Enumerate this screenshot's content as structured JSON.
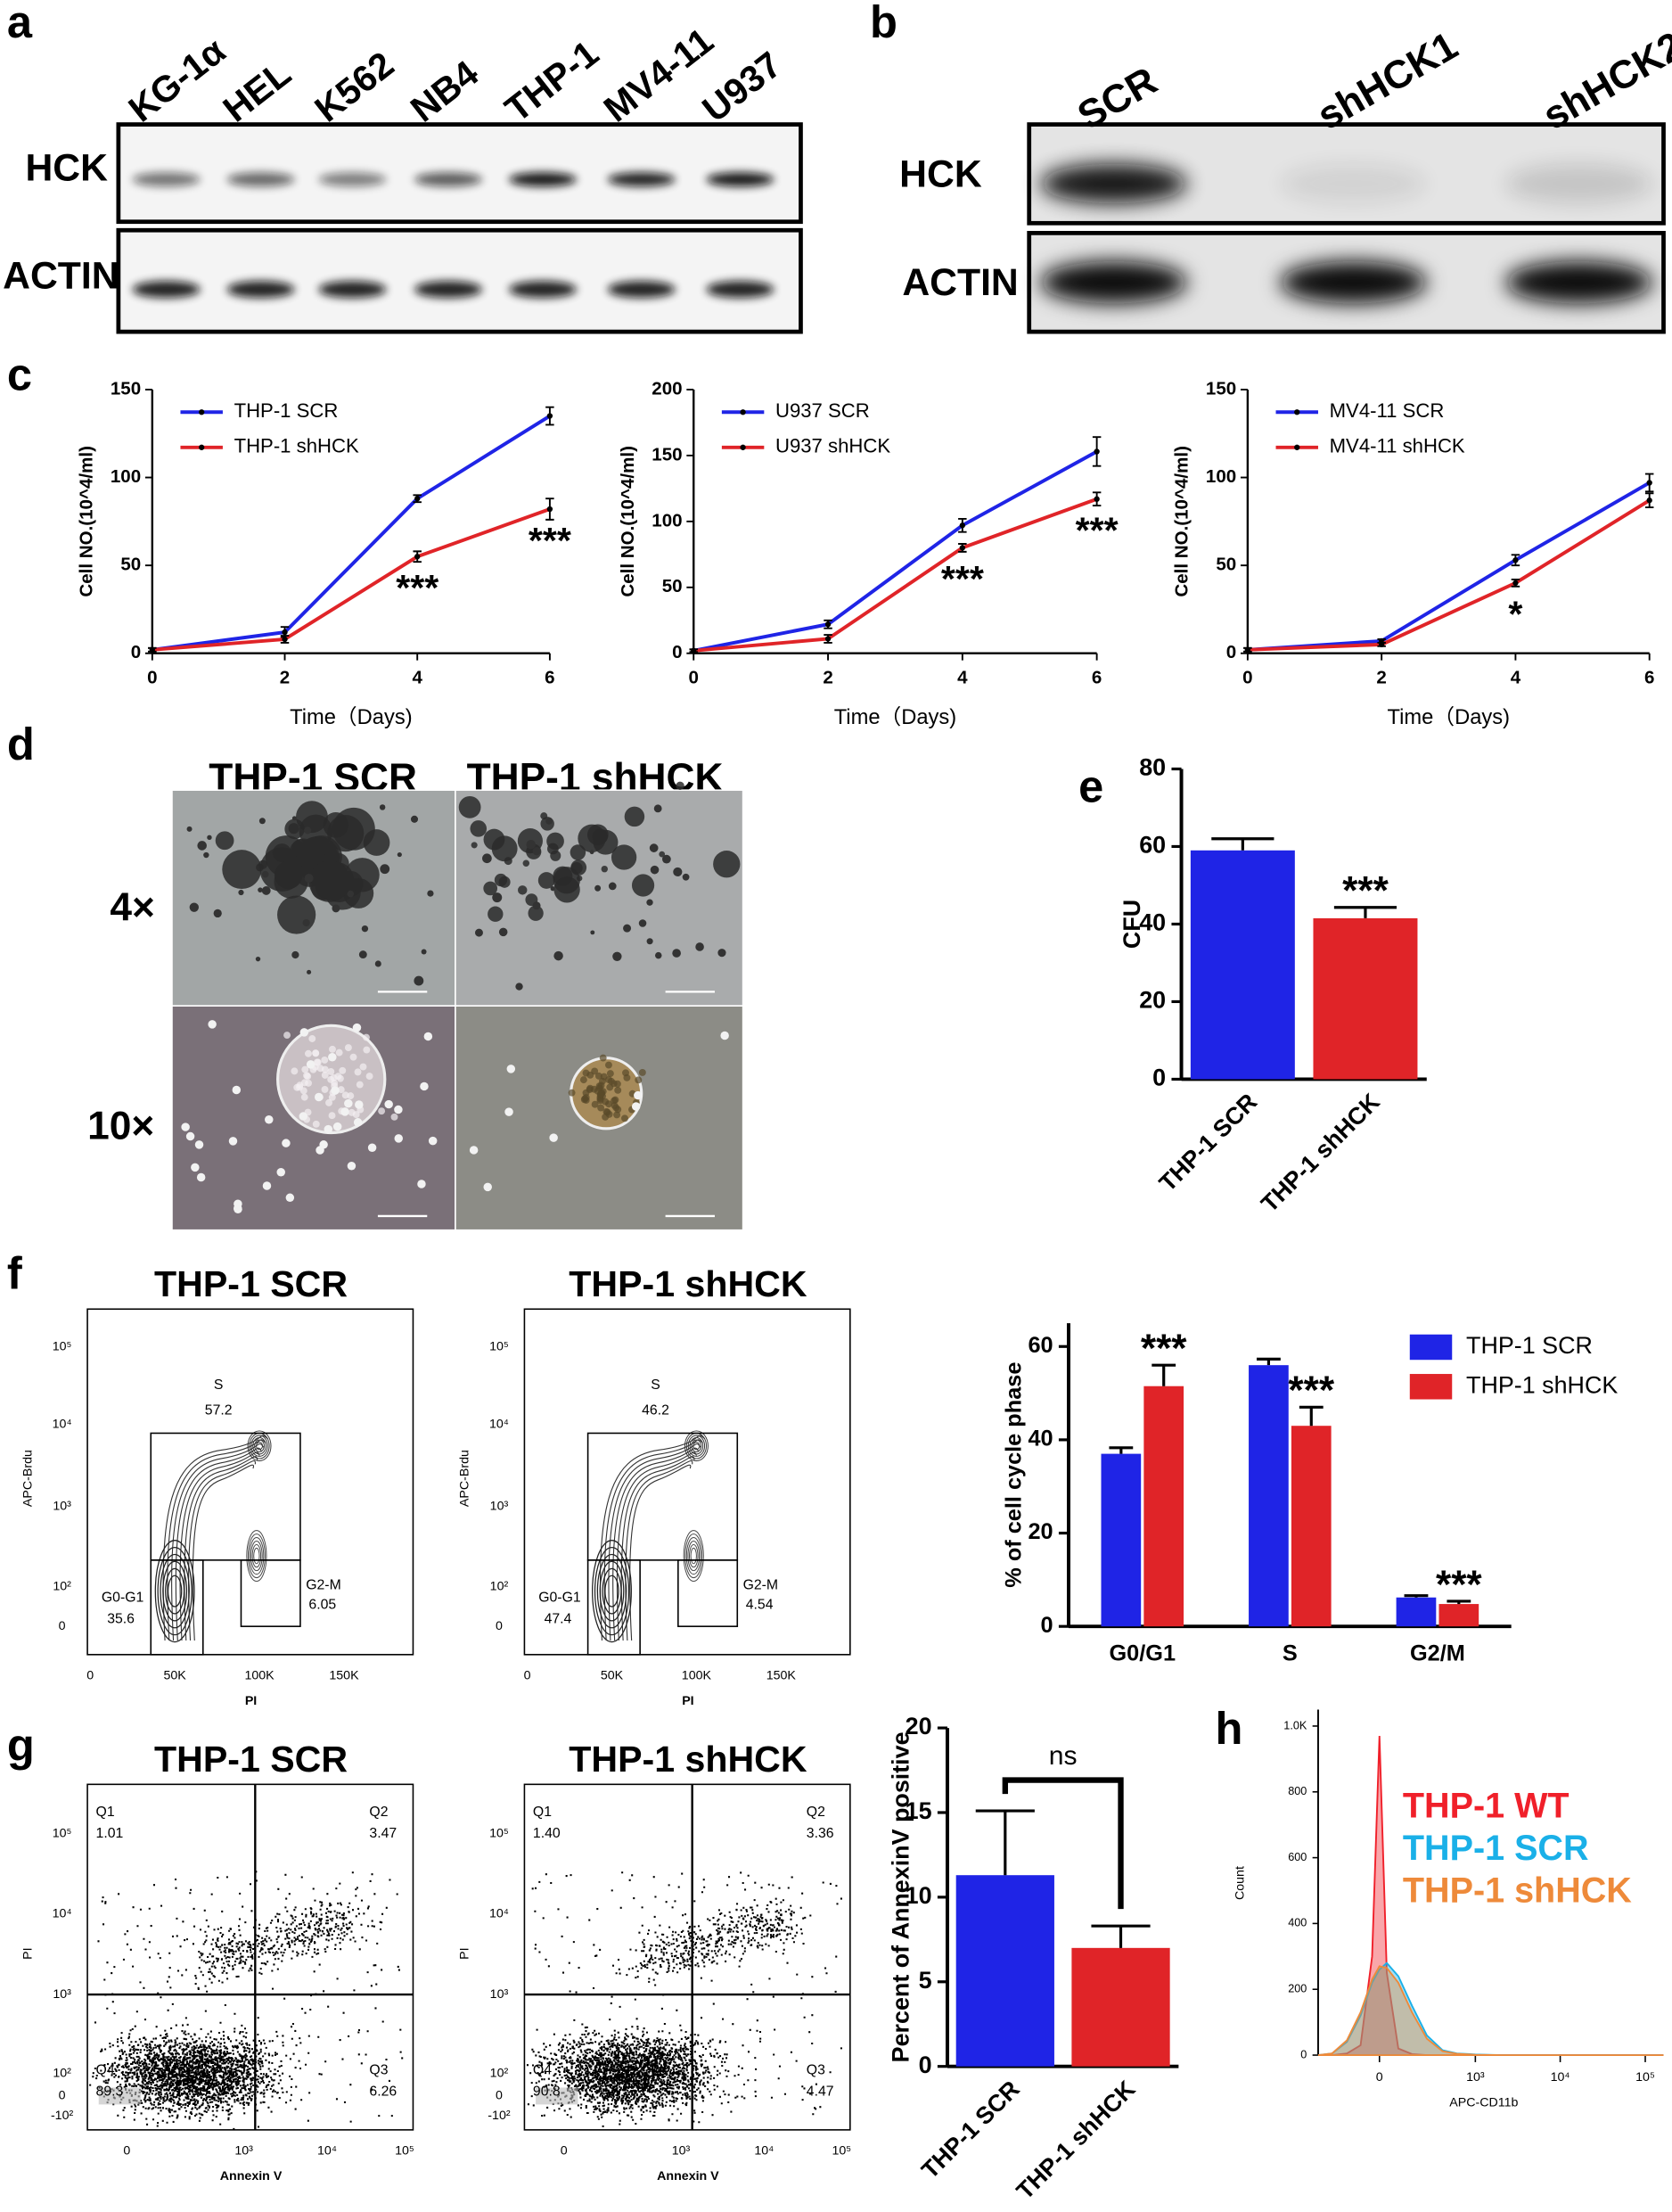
{
  "panel_labels": [
    "a",
    "b",
    "c",
    "d",
    "e",
    "f",
    "g",
    "h"
  ],
  "blots": [
    {
      "lanes": [
        "KG-1α",
        "HEL",
        "K562",
        "NB4",
        "THP-1",
        "MV4-11",
        "U937"
      ],
      "rows": [
        "HCK",
        "ACTIN"
      ]
    },
    {
      "lanes": [
        "SCR",
        "shHCK1",
        "shHCK2"
      ],
      "rows": [
        "HCK",
        "ACTIN"
      ]
    }
  ],
  "micrographs": {
    "columns": [
      "THP-1  SCR",
      "THP-1  shHCK"
    ],
    "rows": [
      "4×",
      "10×"
    ]
  },
  "flow_plots": [
    {
      "title": "THP-1  SCR",
      "y_label": "APC-Brdu",
      "x_label": "PI",
      "y_ticks": [
        "10⁵",
        "10⁴",
        "10³",
        "10²",
        "0"
      ],
      "x_ticks": [
        "0",
        "50K",
        "100K",
        "150K"
      ],
      "gates": [
        {
          "name": "S",
          "value": "57.2"
        },
        {
          "name": "G0-G1",
          "value": "35.6"
        },
        {
          "name": "G2-M",
          "value": "6.05"
        }
      ]
    },
    {
      "title": "THP-1  shHCK",
      "y_label": "APC-Brdu",
      "x_label": "PI",
      "y_ticks": [
        "10⁵",
        "10⁴",
        "10³",
        "10²",
        "0"
      ],
      "x_ticks": [
        "0",
        "50K",
        "100K",
        "150K"
      ],
      "gates": [
        {
          "name": "S",
          "value": "46.2"
        },
        {
          "name": "G0-G1",
          "value": "47.4"
        },
        {
          "name": "G2-M",
          "value": "4.54"
        }
      ]
    },
    {
      "title": "THP-1  SCR",
      "y_label": "PI",
      "x_label": "Annexin V",
      "y_ticks": [
        "10⁵",
        "10⁴",
        "10³",
        "10²",
        "0",
        "-10²"
      ],
      "x_ticks": [
        "0",
        "10³",
        "10⁴",
        "10⁵"
      ],
      "gates": [
        {
          "name": "Q1",
          "value": "1.01"
        },
        {
          "name": "Q2",
          "value": "3.47"
        },
        {
          "name": "Q3",
          "value": "6.26"
        },
        {
          "name": "Q4",
          "value": "89.3"
        }
      ]
    },
    {
      "title": "THP-1  shHCK",
      "y_label": "PI",
      "x_label": "Annexin V",
      "y_ticks": [
        "10⁵",
        "10⁴",
        "10³",
        "10²",
        "0",
        "-10²"
      ],
      "x_ticks": [
        "0",
        "10³",
        "10⁴",
        "10⁵"
      ],
      "gates": [
        {
          "name": "Q1",
          "value": "1.40"
        },
        {
          "name": "Q2",
          "value": "3.36"
        },
        {
          "name": "Q3",
          "value": "4.47"
        },
        {
          "name": "Q4",
          "value": "90.8"
        }
      ]
    }
  ],
  "chart_data": [
    {
      "type": "line",
      "x_label": "Time（Days)",
      "y_label": "Cell NO.(10^4/ml)",
      "x": [
        0,
        2,
        4,
        6
      ],
      "xlim": [
        0,
        6
      ],
      "xticks": [
        0,
        2,
        4,
        6
      ],
      "ylim": [
        0,
        150
      ],
      "yticks": [
        0,
        50,
        100,
        150
      ],
      "legend": "upper left",
      "series": [
        {
          "name": "THP-1 SCR",
          "color": "#1f24e6",
          "values": [
            2,
            12,
            88,
            135
          ],
          "errors": [
            1,
            3,
            2,
            5
          ]
        },
        {
          "name": "THP-1 shHCK",
          "color": "#e02428",
          "values": [
            2,
            8,
            55,
            82
          ],
          "errors": [
            1,
            2,
            3,
            6
          ],
          "annotations": [
            null,
            null,
            "***",
            "***"
          ]
        }
      ]
    },
    {
      "type": "line",
      "x_label": "Time（Days)",
      "y_label": "Cell NO.(10^4/ml)",
      "x": [
        0,
        2,
        4,
        6
      ],
      "xlim": [
        0,
        6
      ],
      "xticks": [
        0,
        2,
        4,
        6
      ],
      "ylim": [
        0,
        200
      ],
      "yticks": [
        0,
        50,
        100,
        150,
        200
      ],
      "legend": "upper left",
      "series": [
        {
          "name": "U937 SCR",
          "color": "#1f24e6",
          "values": [
            2,
            22,
            97,
            153
          ],
          "errors": [
            1,
            3,
            5,
            11
          ]
        },
        {
          "name": "U937 shHCK",
          "color": "#e02428",
          "values": [
            2,
            11,
            80,
            117
          ],
          "errors": [
            1,
            3,
            3,
            5
          ],
          "annotations": [
            null,
            null,
            "***",
            "***"
          ]
        }
      ]
    },
    {
      "type": "line",
      "x_label": "Time（Days)",
      "y_label": "Cell NO.(10^4/ml)",
      "x": [
        0,
        2,
        4,
        6
      ],
      "xlim": [
        0,
        6
      ],
      "xticks": [
        0,
        2,
        4,
        6
      ],
      "ylim": [
        0,
        150
      ],
      "yticks": [
        0,
        50,
        100,
        150
      ],
      "legend": "upper left",
      "series": [
        {
          "name": "MV4-11 SCR",
          "color": "#1f24e6",
          "values": [
            2,
            7,
            53,
            97
          ],
          "errors": [
            1,
            1,
            3,
            5
          ]
        },
        {
          "name": "MV4-11 shHCK",
          "color": "#e02428",
          "values": [
            2,
            5,
            40,
            87
          ],
          "errors": [
            1,
            1,
            2,
            4
          ],
          "annotations": [
            null,
            null,
            "*",
            null
          ]
        }
      ]
    },
    {
      "type": "bar",
      "y_label": "CFU",
      "categories": [
        "THP-1 SCR",
        "THP-1 shHCK"
      ],
      "values": [
        59,
        41.5
      ],
      "errors": [
        3,
        2.8
      ],
      "colors": [
        "#1f24e6",
        "#e02428"
      ],
      "annotations": [
        null,
        "***"
      ],
      "ylim": [
        0,
        80
      ],
      "yticks": [
        0,
        20,
        40,
        60,
        80
      ]
    },
    {
      "type": "bar",
      "y_label": "% of  cell cycle phase",
      "categories": [
        "G0/G1",
        "S",
        "G2/M"
      ],
      "ylim": [
        0,
        65
      ],
      "yticks": [
        0,
        20,
        40,
        60
      ],
      "legend": "upper right",
      "series": [
        {
          "name": "THP-1 SCR",
          "color": "#1f24e6",
          "values": [
            37,
            56,
            6.2
          ],
          "errors": [
            1.3,
            1.3,
            0.4
          ]
        },
        {
          "name": "THP-1 shHCK",
          "color": "#e02428",
          "values": [
            51.5,
            43,
            4.8
          ],
          "errors": [
            4.5,
            4,
            0.6
          ],
          "annotations": [
            "***",
            "***",
            "***"
          ]
        }
      ]
    },
    {
      "type": "bar",
      "y_label": "Percent of AnnexinV positive",
      "categories": [
        "THP-1 SCR",
        "THP-1 shHCK"
      ],
      "values": [
        11.3,
        7
      ],
      "errors": [
        3.8,
        1.3
      ],
      "colors": [
        "#1f24e6",
        "#e02428"
      ],
      "comparison": "ns",
      "ylim": [
        0,
        20
      ],
      "yticks": [
        0,
        5,
        10,
        15,
        20
      ]
    },
    {
      "type": "area",
      "y_label": "Count",
      "x_label": "APC-CD11b",
      "xscale": "asinh",
      "xscale_cofactor": 150,
      "legend": "upper right",
      "x": [
        -380,
        -250,
        -150,
        -80,
        -30,
        0,
        30,
        80,
        150,
        250,
        400,
        600,
        1000,
        2000,
        5000,
        164000
      ],
      "xlim": [
        -380,
        164000
      ],
      "xticks": [
        0,
        {
          "value": 1000,
          "label": "10³"
        },
        {
          "value": 10000,
          "label": "10⁴"
        },
        {
          "value": 100000,
          "label": "10⁵"
        }
      ],
      "ylim": [
        0,
        1050
      ],
      "yticks": [
        0,
        200,
        400,
        600,
        800,
        {
          "value": 1000,
          "label": "1.0K"
        }
      ],
      "series": [
        {
          "name": "THP-1 WT",
          "color": "#f0202a",
          "values": [
            0,
            0,
            5,
            30,
            300,
            970,
            250,
            20,
            3,
            0,
            0,
            0,
            0,
            0,
            0,
            0
          ]
        },
        {
          "name": "THP-1 SCR",
          "color": "#1ab0e8",
          "values": [
            0,
            5,
            40,
            120,
            220,
            260,
            280,
            240,
            150,
            60,
            15,
            5,
            2,
            0,
            0,
            0
          ]
        },
        {
          "name": "THP-1 shHCK",
          "color": "#ee8a3a",
          "values": [
            0,
            5,
            45,
            130,
            230,
            270,
            265,
            220,
            130,
            50,
            12,
            4,
            1,
            0,
            0,
            0
          ]
        }
      ]
    }
  ]
}
